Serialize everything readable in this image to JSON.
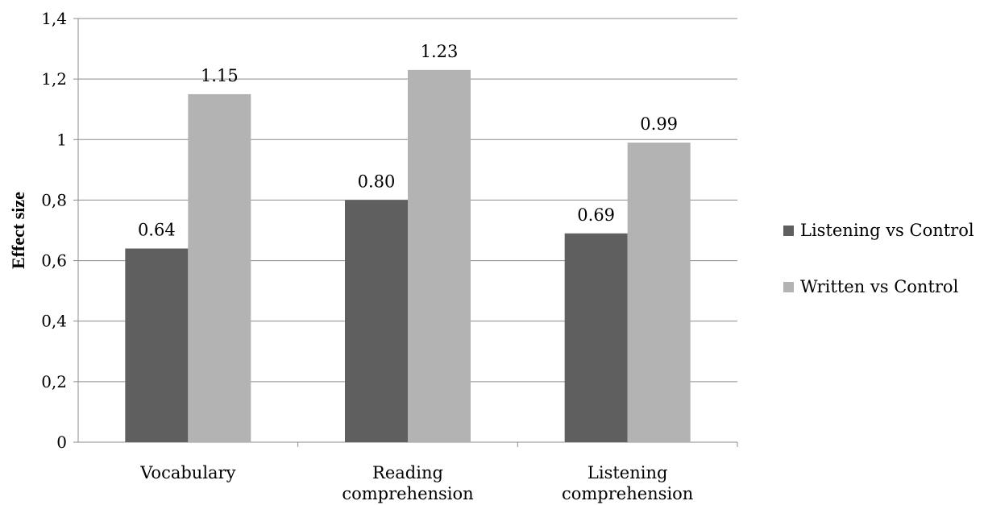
{
  "chart_data": {
    "type": "bar",
    "categories": [
      [
        "Vocabulary"
      ],
      [
        "Reading",
        "comprehension"
      ],
      [
        "Listening",
        "comprehension"
      ]
    ],
    "series": [
      {
        "name": "Listening vs Control",
        "values": [
          0.64,
          0.8,
          0.69
        ],
        "labels": [
          "0.64",
          "0.80",
          "0.69"
        ],
        "color": "#5f5f5f"
      },
      {
        "name": "Written vs Control",
        "values": [
          1.15,
          1.23,
          0.99
        ],
        "labels": [
          "1.15",
          "1.23",
          "0.99"
        ],
        "color": "#b3b3b3"
      }
    ],
    "ylabel": "Effect size",
    "ylim": [
      0,
      1.4
    ],
    "yticks": [
      0,
      0.2,
      0.4,
      0.6,
      0.8,
      1,
      1.2,
      1.4
    ],
    "ytick_labels": [
      "0",
      "0,2",
      "0,4",
      "0,6",
      "0,8",
      "1",
      "1,2",
      "1,4"
    ],
    "grid": true,
    "gridline_color": "#8c8c8c",
    "legend_position": "right"
  }
}
